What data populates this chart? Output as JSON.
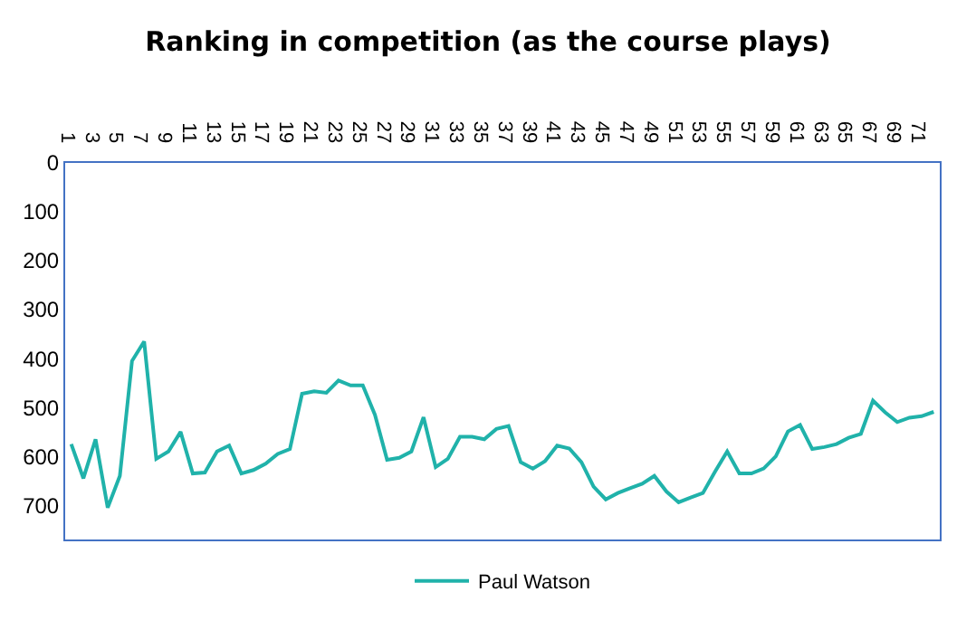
{
  "chart_data": {
    "type": "line",
    "title": "Ranking in competition (as the course plays)",
    "categories": [
      "1",
      null,
      "3",
      null,
      "5",
      null,
      "7",
      null,
      "9",
      null,
      "11",
      null,
      "13",
      null,
      "15",
      null,
      "17",
      null,
      "19",
      null,
      "21",
      null,
      "23",
      null,
      "25",
      null,
      "27",
      null,
      "29",
      null,
      "31",
      null,
      "33",
      null,
      "35",
      null,
      "37",
      null,
      "39",
      null,
      "41",
      null,
      "43",
      null,
      "45",
      null,
      "47",
      null,
      "49",
      null,
      "51",
      null,
      "53",
      null,
      "55",
      null,
      "57",
      null,
      "59",
      null,
      "61",
      null,
      "63",
      null,
      "65",
      null,
      "67",
      null,
      "69",
      null,
      "71",
      null
    ],
    "series": [
      {
        "name": "Paul Watson",
        "color": "#20b2aa",
        "values": [
          575,
          645,
          565,
          705,
          640,
          405,
          365,
          605,
          590,
          550,
          635,
          633,
          590,
          578,
          635,
          628,
          615,
          595,
          585,
          472,
          467,
          470,
          445,
          455,
          455,
          515,
          607,
          603,
          590,
          520,
          622,
          605,
          560,
          560,
          565,
          544,
          538,
          612,
          625,
          610,
          578,
          584,
          612,
          662,
          688,
          675,
          665,
          656,
          640,
          672,
          694,
          684,
          675,
          631,
          590,
          635,
          635,
          625,
          600,
          549,
          536,
          585,
          581,
          575,
          562,
          554,
          486,
          510,
          530,
          521,
          518,
          509
        ]
      }
    ],
    "ylim": [
      770,
      0
    ],
    "yticks": [
      0,
      100,
      200,
      300,
      400,
      500,
      600,
      700
    ],
    "grid": false,
    "legend": "bottom",
    "marker": "none",
    "line_style": "solid"
  }
}
